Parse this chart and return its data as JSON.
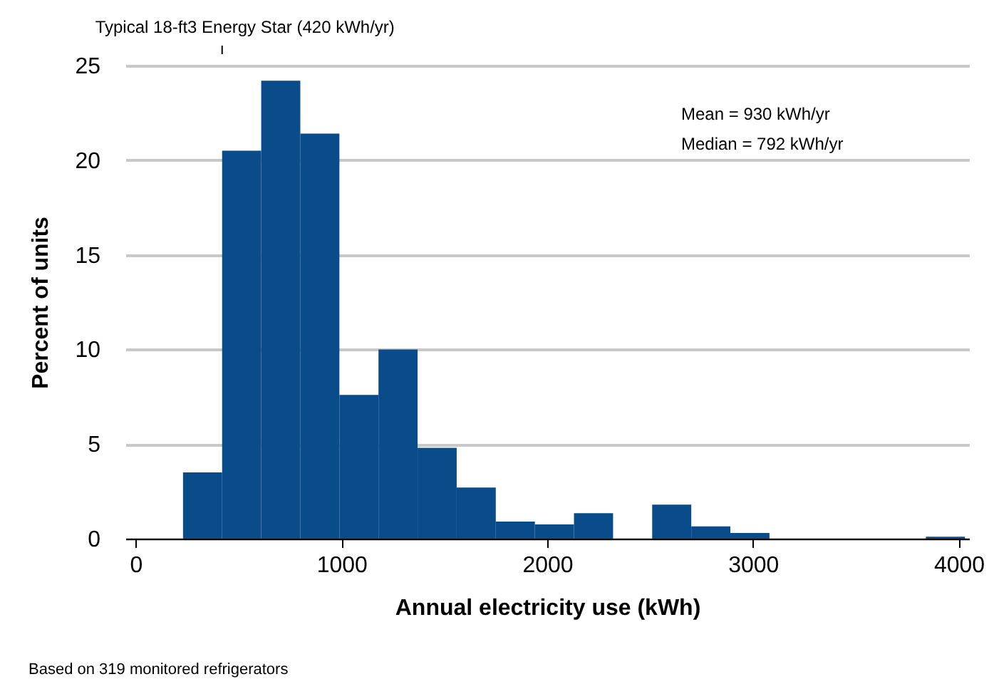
{
  "chart_data": {
    "type": "histogram",
    "xlabel": "Annual electricity use (kWh)",
    "ylabel": "Percent of units",
    "bins": [
      230,
      420,
      610,
      800,
      990,
      1180,
      1370,
      1560,
      1750,
      1940,
      2130,
      2320,
      2510,
      2700,
      2890,
      3080,
      3270,
      3460,
      3650,
      3840,
      4030
    ],
    "values": [
      3.5,
      20.5,
      24.2,
      21.4,
      7.6,
      10.0,
      4.8,
      2.7,
      0.9,
      0.75,
      1.35,
      0,
      1.8,
      0.65,
      0.3,
      0,
      0,
      0,
      0,
      0.1
    ],
    "color": "#0a4c89",
    "xlim": [
      -50,
      4050
    ],
    "xticks": [
      0,
      1000,
      2000,
      3000,
      4000
    ],
    "ylim": [
      0,
      25
    ],
    "yticks": [
      0,
      5,
      10,
      15,
      20,
      25
    ],
    "grid": "y",
    "ref_lines": [
      {
        "axis": "x",
        "value": 420,
        "label": "Typical 18-ft3 Energy Star (420 kWh/yr)"
      }
    ],
    "annotations": [
      "Mean = 930 kWh/yr",
      "Median = 792 kWh/yr",
      "Based on 319 monitored refrigerators"
    ]
  }
}
